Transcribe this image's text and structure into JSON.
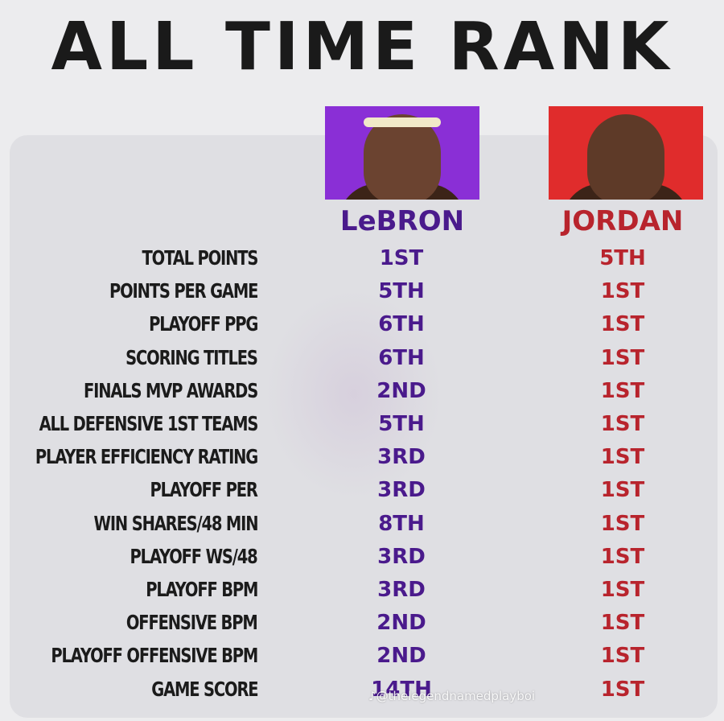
{
  "title": "ALL TIME RANK",
  "colors": {
    "lebron": "#4a1a8c",
    "jordan": "#b8242d",
    "lebron_photo_bg": "#8a2fd6",
    "jordan_photo_bg": "#e02c2c"
  },
  "players": {
    "lebron": {
      "name": "LeBRON"
    },
    "jordan": {
      "name": "JORDAN"
    }
  },
  "rows": [
    {
      "stat": "TOTAL POINTS",
      "lebron": "1ST",
      "jordan": "5TH"
    },
    {
      "stat": "POINTS PER GAME",
      "lebron": "5TH",
      "jordan": "1ST"
    },
    {
      "stat": "PLAYOFF PPG",
      "lebron": "6TH",
      "jordan": "1ST"
    },
    {
      "stat": "SCORING TITLES",
      "lebron": "6TH",
      "jordan": "1ST"
    },
    {
      "stat": "FINALS MVP AWARDS",
      "lebron": "2ND",
      "jordan": "1ST"
    },
    {
      "stat": "ALL DEFENSIVE 1ST TEAMS",
      "lebron": "5TH",
      "jordan": "1ST"
    },
    {
      "stat": "PLAYER EFFICIENCY RATING",
      "lebron": "3RD",
      "jordan": "1ST"
    },
    {
      "stat": "PLAYOFF PER",
      "lebron": "3RD",
      "jordan": "1ST"
    },
    {
      "stat": "WIN SHARES/48 MIN",
      "lebron": "8TH",
      "jordan": "1ST"
    },
    {
      "stat": "PLAYOFF WS/48",
      "lebron": "3RD",
      "jordan": "1ST"
    },
    {
      "stat": "PLAYOFF BPM",
      "lebron": "3RD",
      "jordan": "1ST"
    },
    {
      "stat": "OFFENSIVE BPM",
      "lebron": "2ND",
      "jordan": "1ST"
    },
    {
      "stat": "PLAYOFF OFFENSIVE BPM",
      "lebron": "2ND",
      "jordan": "1ST"
    },
    {
      "stat": "GAME SCORE",
      "lebron": "14TH",
      "jordan": "1ST"
    }
  ],
  "watermark": "@thelegendnamedplayboi"
}
